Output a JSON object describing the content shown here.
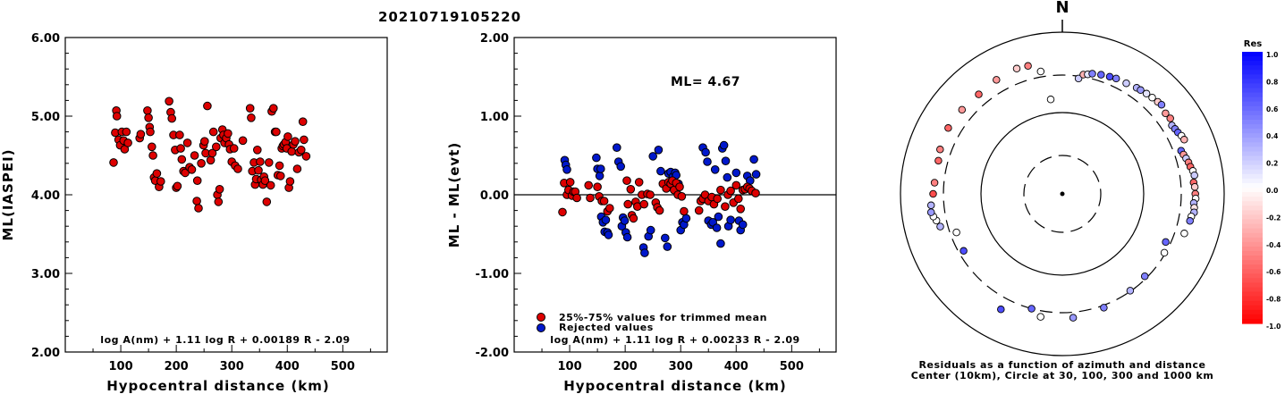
{
  "title": "20210719105220",
  "chart_data": [
    {
      "type": "scatter",
      "ylabel": "ML(IASPEI)",
      "xlabel": "Hypocentral distance (km)",
      "xlim": [
        0,
        580
      ],
      "ylim": [
        2.0,
        6.0
      ],
      "xticks": [
        "100",
        "200",
        "300",
        "400",
        "500"
      ],
      "yticks": [
        "2.00",
        "3.00",
        "4.00",
        "5.00",
        "6.00"
      ],
      "formula": "log A(nm) + 1.11 log R + 0.00189 R - 2.09",
      "colors": {
        "accepted": "#dd0000"
      },
      "points": [
        [
          87,
          4.41
        ],
        [
          90,
          4.79
        ],
        [
          92,
          5.07
        ],
        [
          93,
          5.0
        ],
        [
          96,
          4.7
        ],
        [
          99,
          4.63
        ],
        [
          102,
          4.8
        ],
        [
          105,
          4.69
        ],
        [
          107,
          4.58
        ],
        [
          110,
          4.8
        ],
        [
          113,
          4.66
        ],
        [
          134,
          4.72
        ],
        [
          136,
          4.77
        ],
        [
          148,
          5.07
        ],
        [
          150,
          4.98
        ],
        [
          152,
          4.86
        ],
        [
          153,
          4.8
        ],
        [
          156,
          4.61
        ],
        [
          158,
          4.5
        ],
        [
          160,
          4.22
        ],
        [
          162,
          4.18
        ],
        [
          165,
          4.27
        ],
        [
          169,
          4.1
        ],
        [
          172,
          4.17
        ],
        [
          187,
          5.19
        ],
        [
          190,
          5.05
        ],
        [
          192,
          4.97
        ],
        [
          195,
          4.76
        ],
        [
          198,
          4.57
        ],
        [
          200,
          4.09
        ],
        [
          202,
          4.11
        ],
        [
          206,
          4.76
        ],
        [
          208,
          4.59
        ],
        [
          210,
          4.45
        ],
        [
          213,
          4.3
        ],
        [
          216,
          4.28
        ],
        [
          220,
          4.66
        ],
        [
          224,
          4.35
        ],
        [
          228,
          4.32
        ],
        [
          233,
          4.5
        ],
        [
          237,
          3.92
        ],
        [
          238,
          4.18
        ],
        [
          240,
          3.83
        ],
        [
          245,
          4.4
        ],
        [
          249,
          4.63
        ],
        [
          251,
          4.68
        ],
        [
          253,
          4.53
        ],
        [
          256,
          5.13
        ],
        [
          262,
          4.44
        ],
        [
          265,
          4.53
        ],
        [
          267,
          4.8
        ],
        [
          272,
          4.61
        ],
        [
          274,
          4.0
        ],
        [
          276,
          3.91
        ],
        [
          278,
          4.07
        ],
        [
          280,
          4.72
        ],
        [
          283,
          4.83
        ],
        [
          285,
          4.76
        ],
        [
          287,
          4.66
        ],
        [
          290,
          4.72
        ],
        [
          293,
          4.78
        ],
        [
          295,
          4.64
        ],
        [
          297,
          4.58
        ],
        [
          300,
          4.42
        ],
        [
          304,
          4.59
        ],
        [
          306,
          4.37
        ],
        [
          311,
          4.33
        ],
        [
          320,
          4.69
        ],
        [
          333,
          5.1
        ],
        [
          335,
          4.98
        ],
        [
          337,
          4.3
        ],
        [
          340,
          4.41
        ],
        [
          342,
          4.13
        ],
        [
          344,
          4.2
        ],
        [
          346,
          4.57
        ],
        [
          348,
          4.31
        ],
        [
          351,
          4.42
        ],
        [
          353,
          4.19
        ],
        [
          356,
          4.13
        ],
        [
          358,
          4.23
        ],
        [
          360,
          4.18
        ],
        [
          363,
          3.91
        ],
        [
          367,
          4.41
        ],
        [
          370,
          4.12
        ],
        [
          372,
          5.06
        ],
        [
          375,
          5.1
        ],
        [
          378,
          4.8
        ],
        [
          380,
          4.8
        ],
        [
          383,
          4.25
        ],
        [
          386,
          4.37
        ],
        [
          388,
          4.24
        ],
        [
          390,
          4.59
        ],
        [
          392,
          4.62
        ],
        [
          394,
          4.64
        ],
        [
          397,
          4.67
        ],
        [
          399,
          4.59
        ],
        [
          401,
          4.74
        ],
        [
          403,
          4.09
        ],
        [
          405,
          4.17
        ],
        [
          408,
          4.55
        ],
        [
          411,
          4.64
        ],
        [
          414,
          4.68
        ],
        [
          418,
          4.33
        ],
        [
          421,
          4.54
        ],
        [
          425,
          4.57
        ],
        [
          428,
          4.93
        ],
        [
          430,
          4.7
        ],
        [
          434,
          4.49
        ]
      ]
    },
    {
      "type": "scatter",
      "ylabel": "ML - ML(evt)",
      "xlabel": "Hypocentral distance (km)",
      "xlim": [
        0,
        580
      ],
      "ylim": [
        -2.0,
        2.0
      ],
      "xticks": [
        "100",
        "200",
        "300",
        "400",
        "500"
      ],
      "yticks": [
        "-2.00",
        "-1.00",
        "0.00",
        "1.00",
        "2.00"
      ],
      "annotation": "ML=  4.67",
      "formula": "log A(nm) + 1.11 log R + 0.00233 R - 2.09",
      "legend": [
        "25%-75% values for trimmed mean",
        "Rejected values"
      ],
      "colors": {
        "accepted": "#dd0000",
        "rejected": "#0018cc"
      },
      "accepted": [
        [
          87,
          -0.22
        ],
        [
          90,
          0.15
        ],
        [
          95,
          0.0
        ],
        [
          98,
          0.06
        ],
        [
          101,
          0.16
        ],
        [
          104,
          -0.01
        ],
        [
          107,
          0.04
        ],
        [
          110,
          0.04
        ],
        [
          113,
          -0.04
        ],
        [
          134,
          0.12
        ],
        [
          137,
          -0.04
        ],
        [
          150,
          0.1
        ],
        [
          153,
          -0.02
        ],
        [
          158,
          -0.08
        ],
        [
          162,
          -0.08
        ],
        [
          168,
          -0.21
        ],
        [
          172,
          -0.17
        ],
        [
          203,
          0.18
        ],
        [
          205,
          -0.12
        ],
        [
          210,
          0.07
        ],
        [
          212,
          -0.26
        ],
        [
          215,
          -0.3
        ],
        [
          219,
          -0.09
        ],
        [
          222,
          -0.15
        ],
        [
          225,
          0.16
        ],
        [
          230,
          0.0
        ],
        [
          234,
          -0.12
        ],
        [
          240,
          0.01
        ],
        [
          245,
          0.0
        ],
        [
          255,
          -0.1
        ],
        [
          258,
          -0.16
        ],
        [
          262,
          -0.2
        ],
        [
          268,
          0.14
        ],
        [
          274,
          0.08
        ],
        [
          278,
          0.16
        ],
        [
          282,
          0.14
        ],
        [
          285,
          0.18
        ],
        [
          288,
          0.06
        ],
        [
          292,
          0.15
        ],
        [
          295,
          0.0
        ],
        [
          298,
          0.1
        ],
        [
          302,
          -0.02
        ],
        [
          306,
          -0.21
        ],
        [
          333,
          -0.2
        ],
        [
          336,
          -0.08
        ],
        [
          340,
          -0.05
        ],
        [
          344,
          0.0
        ],
        [
          350,
          -0.08
        ],
        [
          356,
          -0.03
        ],
        [
          360,
          -0.12
        ],
        [
          366,
          -0.05
        ],
        [
          372,
          0.06
        ],
        [
          380,
          -0.15
        ],
        [
          385,
          0.0
        ],
        [
          390,
          0.05
        ],
        [
          395,
          -0.1
        ],
        [
          400,
          0.12
        ],
        [
          404,
          -0.05
        ],
        [
          408,
          -0.18
        ],
        [
          412,
          0.06
        ],
        [
          416,
          0.07
        ],
        [
          420,
          0.1
        ],
        [
          424,
          0.08
        ],
        [
          428,
          0.05
        ],
        [
          435,
          0.02
        ]
      ],
      "rejected": [
        [
          91,
          0.44
        ],
        [
          93,
          0.38
        ],
        [
          95,
          0.32
        ],
        [
          148,
          0.47
        ],
        [
          150,
          0.33
        ],
        [
          154,
          0.24
        ],
        [
          156,
          0.33
        ],
        [
          157,
          -0.28
        ],
        [
          160,
          -0.35
        ],
        [
          163,
          -0.47
        ],
        [
          165,
          -0.32
        ],
        [
          168,
          -0.48
        ],
        [
          170,
          -0.51
        ],
        [
          185,
          0.6
        ],
        [
          188,
          0.42
        ],
        [
          192,
          0.36
        ],
        [
          194,
          -0.4
        ],
        [
          196,
          -0.29
        ],
        [
          199,
          -0.33
        ],
        [
          201,
          -0.48
        ],
        [
          204,
          -0.54
        ],
        [
          233,
          -0.67
        ],
        [
          235,
          -0.74
        ],
        [
          242,
          -0.53
        ],
        [
          246,
          -0.45
        ],
        [
          250,
          0.49
        ],
        [
          260,
          0.57
        ],
        [
          264,
          0.3
        ],
        [
          272,
          -0.55
        ],
        [
          276,
          -0.66
        ],
        [
          278,
          0.27
        ],
        [
          282,
          0.29
        ],
        [
          286,
          0.23
        ],
        [
          290,
          0.28
        ],
        [
          292,
          0.25
        ],
        [
          296,
          0.14
        ],
        [
          300,
          -0.45
        ],
        [
          303,
          -0.35
        ],
        [
          306,
          -0.38
        ],
        [
          310,
          -0.3
        ],
        [
          340,
          0.6
        ],
        [
          345,
          0.54
        ],
        [
          348,
          0.42
        ],
        [
          350,
          -0.33
        ],
        [
          355,
          -0.38
        ],
        [
          358,
          -0.35
        ],
        [
          362,
          0.32
        ],
        [
          365,
          -0.42
        ],
        [
          368,
          -0.28
        ],
        [
          372,
          -0.62
        ],
        [
          375,
          0.59
        ],
        [
          378,
          0.63
        ],
        [
          381,
          0.43
        ],
        [
          384,
          0.22
        ],
        [
          386,
          -0.4
        ],
        [
          390,
          -0.32
        ],
        [
          400,
          0.28
        ],
        [
          405,
          -0.33
        ],
        [
          408,
          -0.45
        ],
        [
          412,
          -0.38
        ],
        [
          420,
          0.24
        ],
        [
          425,
          0.18
        ],
        [
          432,
          0.45
        ],
        [
          436,
          0.26
        ]
      ]
    },
    {
      "type": "polar-scatter",
      "north_label": "N",
      "caption_line1": "Residuals as a function of azimuth and distance",
      "caption_line2": "Center (10km), Circle at 30, 100, 300 and 1000 km",
      "colorbar_title": "Res",
      "colorbar_ticks": [
        "1.0",
        "0.8",
        "0.6",
        "0.4",
        "0.2",
        "0.0",
        "-0.2",
        "-0.4",
        "-0.6",
        "-0.8",
        "-1.0"
      ],
      "rings_km": [
        10,
        30,
        100,
        300,
        1000
      ],
      "points": [
        [
          8,
          280,
          0.2
        ],
        [
          10,
          320,
          -0.3
        ],
        [
          12,
          330,
          0.1
        ],
        [
          14,
          345,
          0.5
        ],
        [
          18,
          360,
          0.6
        ],
        [
          22,
          370,
          0.7
        ],
        [
          25,
          380,
          0.5
        ],
        [
          30,
          385,
          0.2
        ],
        [
          35,
          405,
          0.3
        ],
        [
          37,
          410,
          0.4
        ],
        [
          40,
          420,
          0.1
        ],
        [
          43,
          430,
          0.0
        ],
        [
          46,
          440,
          -0.2
        ],
        [
          48,
          450,
          0.5
        ],
        [
          52,
          420,
          -0.4
        ],
        [
          55,
          430,
          -0.5
        ],
        [
          58,
          400,
          0.3
        ],
        [
          60,
          410,
          0.5
        ],
        [
          62,
          420,
          0.6
        ],
        [
          64,
          440,
          0.0
        ],
        [
          66,
          450,
          -0.3
        ],
        [
          70,
          370,
          0.6
        ],
        [
          72,
          380,
          -0.4
        ],
        [
          74,
          395,
          0.2
        ],
        [
          76,
          410,
          -0.5
        ],
        [
          78,
          420,
          -0.6
        ],
        [
          80,
          440,
          0.0
        ],
        [
          82,
          450,
          0.2
        ],
        [
          85,
          430,
          -0.6
        ],
        [
          87,
          440,
          -0.2
        ],
        [
          90,
          445,
          -0.5
        ],
        [
          92,
          450,
          0.0
        ],
        [
          94,
          430,
          0.3
        ],
        [
          96,
          440,
          -0.1
        ],
        [
          98,
          445,
          0.3
        ],
        [
          100,
          420,
          0.0
        ],
        [
          102,
          415,
          0.5
        ],
        [
          108,
          390,
          0.0
        ],
        [
          115,
          260,
          0.6
        ],
        [
          120,
          290,
          0.0
        ],
        [
          135,
          280,
          0.5
        ],
        [
          145,
          295,
          0.3
        ],
        [
          160,
          320,
          0.5
        ],
        [
          175,
          350,
          0.4
        ],
        [
          190,
          355,
          0.0
        ],
        [
          195,
          300,
          0.6
        ],
        [
          208,
          420,
          0.7
        ],
        [
          240,
          260,
          0.7
        ],
        [
          250,
          250,
          0.0
        ],
        [
          255,
          370,
          0.3
        ],
        [
          258,
          395,
          0.0
        ],
        [
          260,
          420,
          0.0
        ],
        [
          262,
          440,
          0.4
        ],
        [
          265,
          430,
          0.3
        ],
        [
          270,
          400,
          -0.7
        ],
        [
          275,
          390,
          -0.5
        ],
        [
          285,
          390,
          -0.6
        ],
        [
          290,
          410,
          -0.5
        ],
        [
          300,
          430,
          -0.6
        ],
        [
          310,
          420,
          -0.4
        ],
        [
          320,
          410,
          -0.6
        ],
        [
          330,
          430,
          -0.4
        ],
        [
          340,
          450,
          -0.2
        ],
        [
          345,
          440,
          -0.5
        ],
        [
          350,
          350,
          0.0
        ],
        [
          353,
          150,
          0.0
        ]
      ]
    }
  ]
}
